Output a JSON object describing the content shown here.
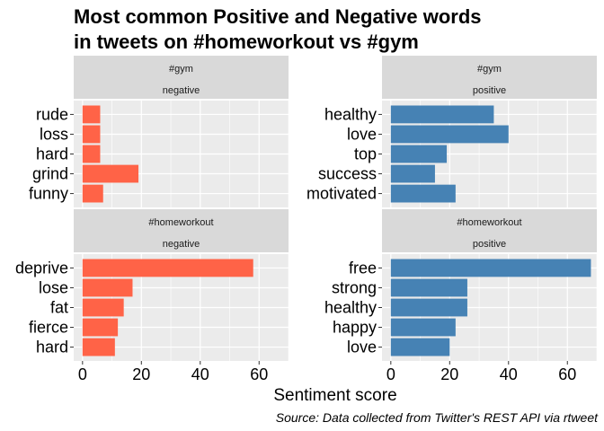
{
  "chart_data": {
    "type": "bar",
    "orientation": "horizontal",
    "title_lines": [
      "Most common Positive and Negative words",
      "in tweets on #homeworkout vs #gym"
    ],
    "xlabel": "Sentiment score",
    "caption": "Source: Data collected from Twitter's REST API via rtweet",
    "xlim": [
      -3,
      70
    ],
    "x_ticks": [
      0,
      20,
      40,
      60
    ],
    "grid": true,
    "colors": {
      "negative": "#FF6347",
      "positive": "#4682B4",
      "panel_bg": "#EBEBEB",
      "strip_bg": "#D9D9D9",
      "gridline": "#FFFFFF"
    },
    "panels": [
      {
        "id": "gym-negative",
        "strip_top": "#gym",
        "strip_bottom": "negative",
        "sentiment": "negative",
        "categories": [
          "rude",
          "loss",
          "hard",
          "grind",
          "funny"
        ],
        "values": [
          6,
          6,
          6,
          19,
          7
        ]
      },
      {
        "id": "gym-positive",
        "strip_top": "#gym",
        "strip_bottom": "positive",
        "sentiment": "positive",
        "categories": [
          "healthy",
          "love",
          "top",
          "success",
          "motivated"
        ],
        "values": [
          35,
          40,
          19,
          15,
          22
        ]
      },
      {
        "id": "homeworkout-negative",
        "strip_top": "#homeworkout",
        "strip_bottom": "negative",
        "sentiment": "negative",
        "categories": [
          "deprive",
          "lose",
          "fat",
          "fierce",
          "hard"
        ],
        "values": [
          58,
          17,
          14,
          12,
          11
        ]
      },
      {
        "id": "homeworkout-positive",
        "strip_top": "#homeworkout",
        "strip_bottom": "positive",
        "sentiment": "positive",
        "categories": [
          "free",
          "strong",
          "healthy",
          "happy",
          "love"
        ],
        "values": [
          68,
          26,
          26,
          22,
          20
        ]
      }
    ]
  }
}
